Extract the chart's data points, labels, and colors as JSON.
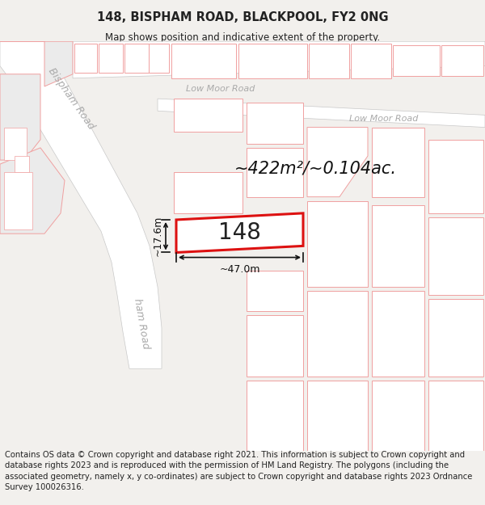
{
  "title": "148, BISPHAM ROAD, BLACKPOOL, FY2 0NG",
  "subtitle": "Map shows position and indicative extent of the property.",
  "area_text": "~422m²/~0.104ac.",
  "label_148": "148",
  "dim_width": "~47.0m",
  "dim_height": "~17.6m",
  "footer": "Contains OS data © Crown copyright and database right 2021. This information is subject to Crown copyright and database rights 2023 and is reproduced with the permission of HM Land Registry. The polygons (including the associated geometry, namely x, y co-ordinates) are subject to Crown copyright and database rights 2023 Ordnance Survey 100026316.",
  "bg_color": "#f2f0ed",
  "map_bg": "#f5f4f1",
  "road_color": "#ffffff",
  "block_fill": "#ebebeb",
  "plot_fill": "#ffffff",
  "plot_edge": "#f0a0a0",
  "road_edge": "#c8c8c8",
  "highlight_fill": "#ffffff",
  "highlight_edge": "#dd1111",
  "title_fontsize": 10.5,
  "subtitle_fontsize": 8.5,
  "footer_fontsize": 7.2,
  "road_label_color": "#aaaaaa",
  "dim_color": "#111111",
  "area_fontsize": 15,
  "label_fontsize": 20,
  "road_label_fontsize": 9
}
